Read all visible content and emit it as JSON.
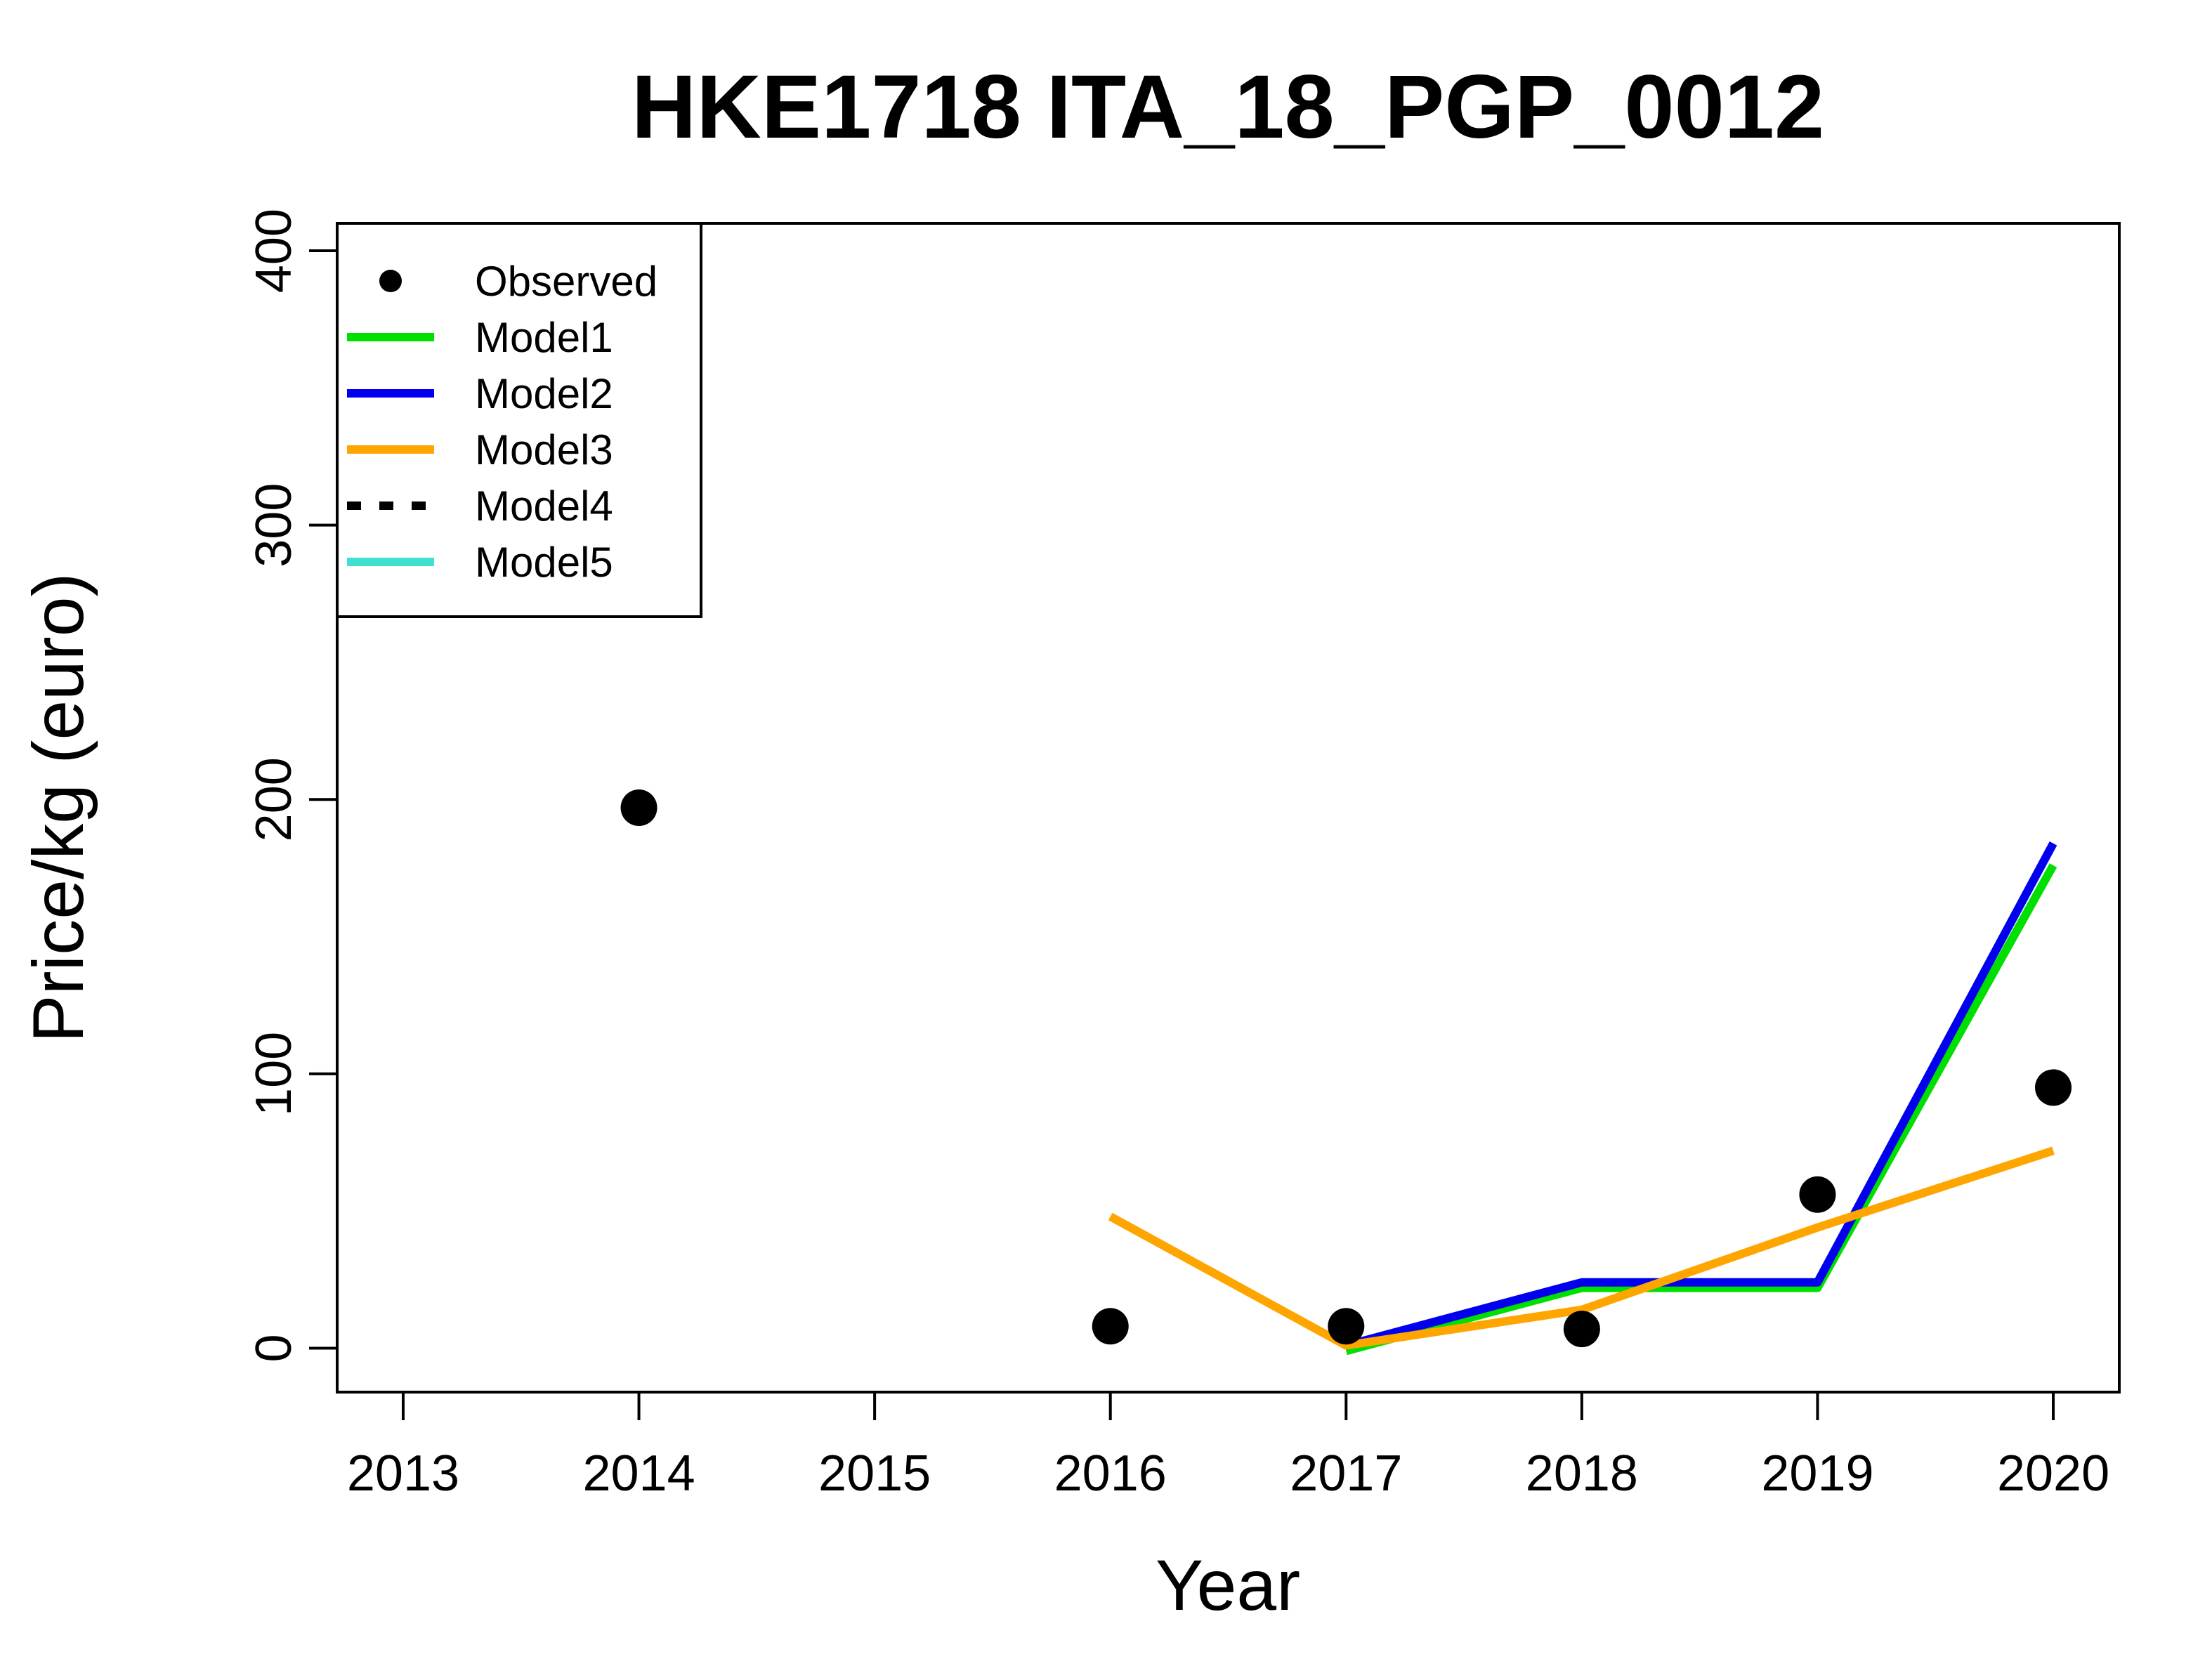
{
  "chart_data": {
    "type": "line",
    "title": "HKE1718 ITA_18_PGP_0012",
    "xlabel": "Year",
    "ylabel": "Price/kg (euro)",
    "x_ticks": [
      2013,
      2014,
      2015,
      2016,
      2017,
      2018,
      2019,
      2020
    ],
    "y_ticks": [
      0,
      100,
      200,
      300,
      400
    ],
    "xlim": [
      2012.72,
      2020.28
    ],
    "ylim": [
      -16,
      410
    ],
    "grid": false,
    "legend_position": "top-left",
    "observed": {
      "name": "Observed",
      "color": "#000000",
      "points": [
        {
          "x": 2014,
          "y": 197
        },
        {
          "x": 2016,
          "y": 8
        },
        {
          "x": 2017,
          "y": 8
        },
        {
          "x": 2018,
          "y": 7
        },
        {
          "x": 2019,
          "y": 56
        },
        {
          "x": 2020,
          "y": 95
        }
      ]
    },
    "series": [
      {
        "name": "Model1",
        "color": "#00e000",
        "dash": "solid",
        "x": [
          2017,
          2018,
          2019,
          2020
        ],
        "values": [
          -1,
          22,
          22,
          176
        ]
      },
      {
        "name": "Model2",
        "color": "#0000ee",
        "dash": "solid",
        "x": [
          2017,
          2018,
          2019,
          2020
        ],
        "values": [
          1,
          24,
          24,
          184
        ]
      },
      {
        "name": "Model3",
        "color": "#ffa500",
        "dash": "solid",
        "x": [
          2016,
          2017,
          2018,
          2019,
          2020
        ],
        "values": [
          48,
          1,
          14,
          44,
          72
        ]
      },
      {
        "name": "Model4",
        "color": "#000000",
        "dash": "dashed",
        "x": [],
        "values": []
      },
      {
        "name": "Model5",
        "color": "#40e0d0",
        "dash": "solid",
        "x": [],
        "values": []
      }
    ]
  }
}
